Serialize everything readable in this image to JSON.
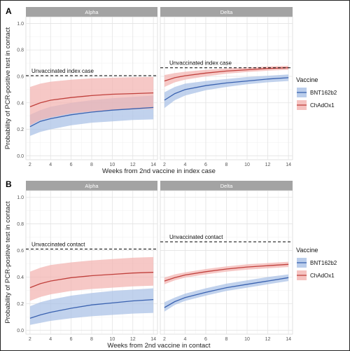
{
  "colors": {
    "bnt_line": "#3a62b0",
    "bnt_band": "#a9c1e6",
    "chad_line": "#c0403c",
    "chad_band": "#f3b3b0",
    "strip_bg": "#a3a3a3",
    "grid": "#e3e3e3",
    "reference_line": "#000000"
  },
  "chart_data": [
    {
      "type": "line",
      "panel_label": "A",
      "facets": [
        "Alpha",
        "Delta"
      ],
      "xlabel": "Weeks from 2nd vaccine in index case",
      "ylabel": "Probability of PCR-positive test in contact",
      "x_ticks": [
        2,
        4,
        6,
        8,
        10,
        12,
        14
      ],
      "y_ticks": [
        0.0,
        0.2,
        0.4,
        0.6,
        0.8,
        1.0
      ],
      "xlim": [
        1.6,
        14.4
      ],
      "ylim": [
        -0.03,
        1.05
      ],
      "grid": true,
      "legend_title": "Vaccine",
      "legend_position": "right",
      "legend": [
        "BNT162b2",
        "ChAdOx1"
      ],
      "panels": [
        {
          "facet": "Alpha",
          "reference_label": "Unvaccinated index case",
          "reference_value": 0.605,
          "series": [
            {
              "name": "BNT162b2",
              "x": [
                2,
                3,
                4,
                6,
                8,
                10,
                12,
                14
              ],
              "y": [
                0.22,
                0.26,
                0.28,
                0.31,
                0.33,
                0.345,
                0.355,
                0.365
              ],
              "lower": [
                0.15,
                0.18,
                0.2,
                0.23,
                0.25,
                0.26,
                0.27,
                0.275
              ],
              "upper": [
                0.31,
                0.345,
                0.37,
                0.4,
                0.42,
                0.435,
                0.445,
                0.455
              ]
            },
            {
              "name": "ChAdOx1",
              "x": [
                2,
                3,
                4,
                6,
                8,
                10,
                12,
                14
              ],
              "y": [
                0.37,
                0.4,
                0.42,
                0.44,
                0.455,
                0.465,
                0.47,
                0.475
              ],
              "lower": [
                0.23,
                0.27,
                0.29,
                0.32,
                0.335,
                0.345,
                0.35,
                0.355
              ],
              "upper": [
                0.52,
                0.545,
                0.56,
                0.575,
                0.585,
                0.59,
                0.593,
                0.595
              ]
            }
          ]
        },
        {
          "facet": "Delta",
          "reference_label": "Unvaccinated index case",
          "reference_value": 0.665,
          "series": [
            {
              "name": "BNT162b2",
              "x": [
                2,
                3,
                4,
                6,
                8,
                10,
                12,
                14
              ],
              "y": [
                0.42,
                0.47,
                0.5,
                0.53,
                0.55,
                0.565,
                0.58,
                0.59
              ],
              "lower": [
                0.36,
                0.42,
                0.455,
                0.495,
                0.52,
                0.54,
                0.555,
                0.565
              ],
              "upper": [
                0.48,
                0.52,
                0.545,
                0.565,
                0.58,
                0.595,
                0.605,
                0.615
              ]
            },
            {
              "name": "ChAdOx1",
              "x": [
                2,
                3,
                4,
                6,
                8,
                10,
                12,
                14
              ],
              "y": [
                0.565,
                0.59,
                0.605,
                0.625,
                0.64,
                0.65,
                0.66,
                0.665
              ],
              "lower": [
                0.52,
                0.555,
                0.575,
                0.6,
                0.62,
                0.633,
                0.643,
                0.65
              ],
              "upper": [
                0.61,
                0.625,
                0.635,
                0.65,
                0.66,
                0.668,
                0.675,
                0.68
              ]
            }
          ]
        }
      ]
    },
    {
      "type": "line",
      "panel_label": "B",
      "facets": [
        "Alpha",
        "Delta"
      ],
      "xlabel": "Weeks from 2nd vaccine in contact",
      "ylabel": "Probability of PCR-positive test in contact",
      "x_ticks": [
        2,
        4,
        6,
        8,
        10,
        12,
        14
      ],
      "y_ticks": [
        0.0,
        0.2,
        0.4,
        0.6,
        0.8,
        1.0
      ],
      "xlim": [
        1.6,
        14.4
      ],
      "ylim": [
        -0.03,
        1.05
      ],
      "grid": true,
      "legend_title": "Vaccine",
      "legend_position": "right",
      "legend": [
        "BNT162b2",
        "ChAdOx1"
      ],
      "panels": [
        {
          "facet": "Alpha",
          "reference_label": "Unvaccinated contact",
          "reference_value": 0.61,
          "series": [
            {
              "name": "BNT162b2",
              "x": [
                2,
                3,
                4,
                6,
                8,
                10,
                12,
                14
              ],
              "y": [
                0.09,
                0.115,
                0.135,
                0.165,
                0.19,
                0.205,
                0.22,
                0.23
              ],
              "lower": [
                0.04,
                0.055,
                0.07,
                0.09,
                0.105,
                0.115,
                0.125,
                0.13
              ],
              "upper": [
                0.18,
                0.21,
                0.23,
                0.26,
                0.28,
                0.295,
                0.305,
                0.315
              ]
            },
            {
              "name": "ChAdOx1",
              "x": [
                2,
                3,
                4,
                6,
                8,
                10,
                12,
                14
              ],
              "y": [
                0.32,
                0.35,
                0.37,
                0.395,
                0.41,
                0.42,
                0.43,
                0.435
              ],
              "lower": [
                0.22,
                0.25,
                0.27,
                0.295,
                0.31,
                0.32,
                0.33,
                0.335
              ],
              "upper": [
                0.44,
                0.47,
                0.49,
                0.51,
                0.525,
                0.535,
                0.545,
                0.55
              ]
            }
          ]
        },
        {
          "facet": "Delta",
          "reference_label": "Unvaccinated contact",
          "reference_value": 0.665,
          "series": [
            {
              "name": "BNT162b2",
              "x": [
                2,
                3,
                4,
                6,
                8,
                10,
                12,
                14
              ],
              "y": [
                0.17,
                0.215,
                0.245,
                0.285,
                0.32,
                0.345,
                0.37,
                0.395
              ],
              "lower": [
                0.14,
                0.19,
                0.22,
                0.26,
                0.295,
                0.32,
                0.345,
                0.37
              ],
              "upper": [
                0.21,
                0.245,
                0.275,
                0.315,
                0.35,
                0.375,
                0.4,
                0.42
              ]
            },
            {
              "name": "ChAdOx1",
              "x": [
                2,
                3,
                4,
                6,
                8,
                10,
                12,
                14
              ],
              "y": [
                0.37,
                0.395,
                0.415,
                0.44,
                0.46,
                0.475,
                0.485,
                0.495
              ],
              "lower": [
                0.345,
                0.375,
                0.395,
                0.42,
                0.44,
                0.455,
                0.465,
                0.475
              ],
              "upper": [
                0.395,
                0.42,
                0.435,
                0.46,
                0.48,
                0.495,
                0.505,
                0.515
              ]
            }
          ]
        }
      ]
    }
  ]
}
